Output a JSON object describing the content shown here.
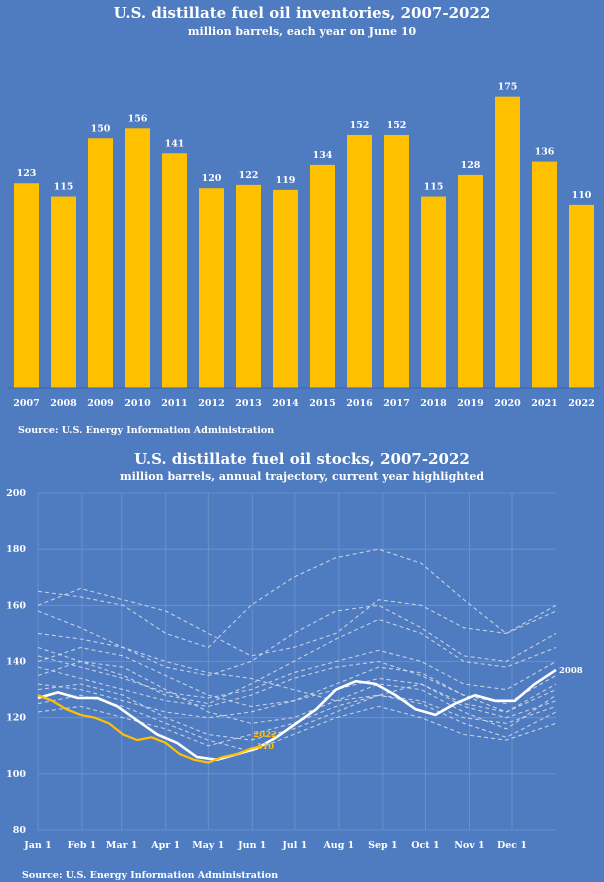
{
  "chart_data": [
    {
      "type": "bar",
      "title": "U.S. distillate fuel oil inventories, 2007-2022",
      "subtitle": "million barrels, each year on June 10",
      "categories": [
        "2007",
        "2008",
        "2009",
        "2010",
        "2011",
        "2012",
        "2013",
        "2014",
        "2015",
        "2016",
        "2017",
        "2018",
        "2019",
        "2020",
        "2021",
        "2022"
      ],
      "values": [
        123,
        115,
        150,
        156,
        141,
        120,
        122,
        119,
        134,
        152,
        152,
        115,
        128,
        175,
        136,
        110
      ],
      "ylim": [
        0,
        185
      ],
      "grid": false,
      "bar_color": "#ffc000",
      "source": "Source: U.S. Energy Information Administration"
    },
    {
      "type": "line",
      "title": "U.S. distillate fuel oil stocks, 2007-2022",
      "subtitle": "million barrels, annual trajectory, current year highlighted",
      "x_ticks": [
        "Jan 1",
        "Feb 1",
        "Mar 1",
        "Apr 1",
        "May 1",
        "Jun 1",
        "Jul 1",
        "Aug 1",
        "Sep 1",
        "Oct 1",
        "Nov 1",
        "Dec 1"
      ],
      "x_tick_days": [
        0,
        31,
        59,
        90,
        120,
        151,
        181,
        212,
        243,
        273,
        304,
        334
      ],
      "x_range": [
        0,
        365
      ],
      "ylim": [
        80,
        200
      ],
      "y_ticks": [
        80,
        100,
        120,
        140,
        160,
        180,
        200
      ],
      "grid": true,
      "source": "Source: U.S. Energy Information Administration",
      "highlight": {
        "name": "2008",
        "color": "#ffffff",
        "label": "2008",
        "x": [
          0,
          14,
          28,
          42,
          56,
          70,
          84,
          98,
          112,
          126,
          140,
          154,
          168,
          182,
          196,
          210,
          224,
          238,
          252,
          266,
          280,
          294,
          308,
          322,
          336,
          350,
          365
        ],
        "y": [
          127,
          129,
          127,
          127,
          124,
          119,
          114,
          111,
          106,
          105,
          107,
          109,
          113,
          118,
          123,
          130,
          133,
          132,
          128,
          123,
          121,
          125,
          128,
          126,
          126,
          132,
          137
        ]
      },
      "current": {
        "name": "2022",
        "color": "#ffc000",
        "label": "2022",
        "value_label": "110",
        "x": [
          0,
          10,
          20,
          30,
          40,
          50,
          60,
          70,
          80,
          90,
          100,
          110,
          120,
          130,
          140,
          150,
          158
        ],
        "y": [
          128,
          126,
          123,
          121,
          120,
          118,
          114,
          112,
          113,
          111,
          107,
          105,
          104,
          106,
          107,
          109,
          110
        ]
      },
      "others": [
        {
          "x": [
            0,
            30,
            60,
            90,
            120,
            150,
            180,
            210,
            240,
            270,
            300,
            330,
            365
          ],
          "y": [
            160,
            166,
            162,
            158,
            150,
            142,
            145,
            150,
            162,
            160,
            152,
            150,
            160
          ]
        },
        {
          "x": [
            0,
            30,
            60,
            90,
            120,
            150,
            180,
            210,
            240,
            270,
            300,
            330,
            365
          ],
          "y": [
            165,
            163,
            160,
            150,
            145,
            160,
            170,
            177,
            180,
            175,
            162,
            150,
            158
          ]
        },
        {
          "x": [
            0,
            30,
            60,
            90,
            120,
            150,
            180,
            210,
            240,
            270,
            300,
            330,
            365
          ],
          "y": [
            158,
            152,
            145,
            138,
            135,
            140,
            150,
            158,
            160,
            152,
            142,
            140,
            150
          ]
        },
        {
          "x": [
            0,
            30,
            60,
            90,
            120,
            150,
            180,
            210,
            240,
            270,
            300,
            330,
            365
          ],
          "y": [
            145,
            140,
            135,
            128,
            125,
            132,
            140,
            148,
            155,
            150,
            140,
            138,
            145
          ]
        },
        {
          "x": [
            0,
            30,
            60,
            90,
            120,
            150,
            180,
            210,
            240,
            270,
            300,
            330,
            365
          ],
          "y": [
            140,
            145,
            142,
            135,
            128,
            124,
            126,
            132,
            138,
            136,
            128,
            122,
            132
          ]
        },
        {
          "x": [
            0,
            30,
            60,
            90,
            120,
            150,
            180,
            210,
            240,
            270,
            300,
            330,
            365
          ],
          "y": [
            135,
            140,
            138,
            130,
            122,
            118,
            120,
            126,
            132,
            130,
            122,
            116,
            128
          ]
        },
        {
          "x": [
            0,
            30,
            60,
            90,
            120,
            150,
            180,
            210,
            240,
            270,
            300,
            330,
            365
          ],
          "y": [
            130,
            132,
            128,
            120,
            114,
            112,
            116,
            122,
            128,
            125,
            118,
            113,
            122
          ]
        },
        {
          "x": [
            0,
            30,
            60,
            90,
            120,
            150,
            180,
            210,
            240,
            270,
            300,
            330,
            365
          ],
          "y": [
            125,
            128,
            124,
            118,
            112,
            108,
            114,
            120,
            124,
            120,
            114,
            112,
            118
          ]
        },
        {
          "x": [
            0,
            30,
            60,
            90,
            120,
            150,
            180,
            210,
            240,
            270,
            300,
            330,
            365
          ],
          "y": [
            138,
            134,
            130,
            126,
            124,
            128,
            134,
            138,
            140,
            135,
            128,
            125,
            135
          ]
        },
        {
          "x": [
            0,
            30,
            60,
            90,
            120,
            150,
            180,
            210,
            240,
            270,
            300,
            330,
            365
          ],
          "y": [
            142,
            138,
            134,
            129,
            127,
            130,
            136,
            140,
            144,
            140,
            132,
            130,
            140
          ]
        },
        {
          "x": [
            0,
            30,
            60,
            90,
            120,
            150,
            180,
            210,
            240,
            270,
            300,
            330,
            365
          ],
          "y": [
            150,
            148,
            145,
            140,
            136,
            134,
            130,
            126,
            128,
            132,
            125,
            122,
            130
          ]
        },
        {
          "x": [
            0,
            30,
            60,
            90,
            120,
            150,
            180,
            210,
            240,
            270,
            300,
            330,
            365
          ],
          "y": [
            132,
            130,
            126,
            122,
            120,
            122,
            126,
            130,
            134,
            132,
            124,
            120,
            126
          ]
        },
        {
          "x": [
            0,
            30,
            60,
            90,
            120,
            150,
            180,
            210,
            240,
            270,
            300,
            330,
            365
          ],
          "y": [
            122,
            124,
            120,
            116,
            110,
            114,
            118,
            124,
            128,
            126,
            120,
            118,
            124
          ]
        }
      ]
    }
  ]
}
